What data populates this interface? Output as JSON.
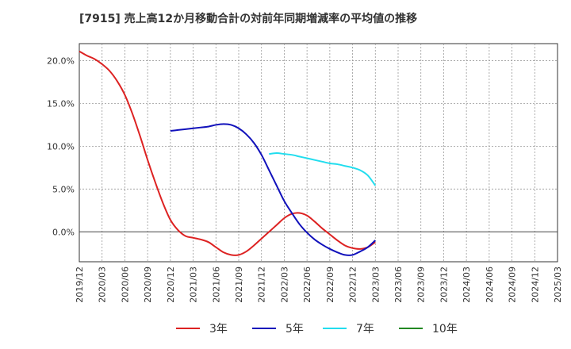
{
  "chart_data": {
    "type": "line",
    "title": "[7915]  売上高12か月移動合計の対前年同期増減率の平均値の推移",
    "xlabel": "",
    "ylabel": "",
    "ylim": [
      -3.5,
      22.0
    ],
    "y_ticks": [
      0,
      5,
      10,
      15,
      20
    ],
    "y_tick_labels": [
      "0.0%",
      "5.0%",
      "10.0%",
      "15.0%",
      "20.0%"
    ],
    "x_tick_labels": [
      "2019/12",
      "2020/03",
      "2020/06",
      "2020/09",
      "2020/12",
      "2021/03",
      "2021/06",
      "2021/09",
      "2021/12",
      "2022/03",
      "2022/06",
      "2022/09",
      "2022/12",
      "2023/03",
      "2023/06",
      "2023/09",
      "2023/12",
      "2024/03",
      "2024/06",
      "2024/09",
      "2024/12",
      "2025/03"
    ],
    "grid": true,
    "legend_position": "bottom",
    "series": [
      {
        "name": "3年",
        "color": "#dd2222",
        "points": [
          [
            0,
            21.1
          ],
          [
            1,
            20.6
          ],
          [
            2,
            20.2
          ],
          [
            3,
            19.6
          ],
          [
            4,
            18.8
          ],
          [
            5,
            17.6
          ],
          [
            6,
            16.0
          ],
          [
            7,
            13.8
          ],
          [
            8,
            11.2
          ],
          [
            9,
            8.4
          ],
          [
            10,
            5.8
          ],
          [
            11,
            3.4
          ],
          [
            12,
            1.4
          ],
          [
            13,
            0.2
          ],
          [
            14,
            -0.5
          ],
          [
            15,
            -0.7
          ],
          [
            16,
            -0.9
          ],
          [
            17,
            -1.2
          ],
          [
            18,
            -1.8
          ],
          [
            19,
            -2.4
          ],
          [
            20,
            -2.7
          ],
          [
            21,
            -2.7
          ],
          [
            22,
            -2.3
          ],
          [
            23,
            -1.6
          ],
          [
            24,
            -0.8
          ],
          [
            25,
            0.0
          ],
          [
            26,
            0.8
          ],
          [
            27,
            1.6
          ],
          [
            28,
            2.1
          ],
          [
            29,
            2.2
          ],
          [
            30,
            1.9
          ],
          [
            31,
            1.2
          ],
          [
            32,
            0.4
          ],
          [
            33,
            -0.3
          ],
          [
            34,
            -1.0
          ],
          [
            35,
            -1.6
          ],
          [
            36,
            -1.9
          ],
          [
            37,
            -2.0
          ],
          [
            38,
            -1.8
          ],
          [
            39,
            -1.2
          ]
        ]
      },
      {
        "name": "5年",
        "color": "#1111bb",
        "points": [
          [
            12,
            11.8
          ],
          [
            13,
            11.9
          ],
          [
            14,
            12.0
          ],
          [
            15,
            12.1
          ],
          [
            16,
            12.2
          ],
          [
            17,
            12.3
          ],
          [
            18,
            12.5
          ],
          [
            19,
            12.6
          ],
          [
            20,
            12.5
          ],
          [
            21,
            12.1
          ],
          [
            22,
            11.4
          ],
          [
            23,
            10.4
          ],
          [
            24,
            9.0
          ],
          [
            25,
            7.2
          ],
          [
            26,
            5.4
          ],
          [
            27,
            3.6
          ],
          [
            28,
            2.2
          ],
          [
            29,
            0.9
          ],
          [
            30,
            -0.1
          ],
          [
            31,
            -0.9
          ],
          [
            32,
            -1.5
          ],
          [
            33,
            -2.0
          ],
          [
            34,
            -2.4
          ],
          [
            35,
            -2.7
          ],
          [
            36,
            -2.7
          ],
          [
            37,
            -2.3
          ],
          [
            38,
            -1.8
          ],
          [
            39,
            -1.0
          ]
        ]
      },
      {
        "name": "7年",
        "color": "#22ddee",
        "points": [
          [
            25,
            9.1
          ],
          [
            26,
            9.2
          ],
          [
            27,
            9.1
          ],
          [
            28,
            9.0
          ],
          [
            29,
            8.8
          ],
          [
            30,
            8.6
          ],
          [
            31,
            8.4
          ],
          [
            32,
            8.2
          ],
          [
            33,
            8.0
          ],
          [
            34,
            7.9
          ],
          [
            35,
            7.7
          ],
          [
            36,
            7.5
          ],
          [
            37,
            7.2
          ],
          [
            38,
            6.6
          ],
          [
            39,
            5.4
          ]
        ]
      },
      {
        "name": "10年",
        "color": "#228822",
        "points": []
      }
    ]
  }
}
